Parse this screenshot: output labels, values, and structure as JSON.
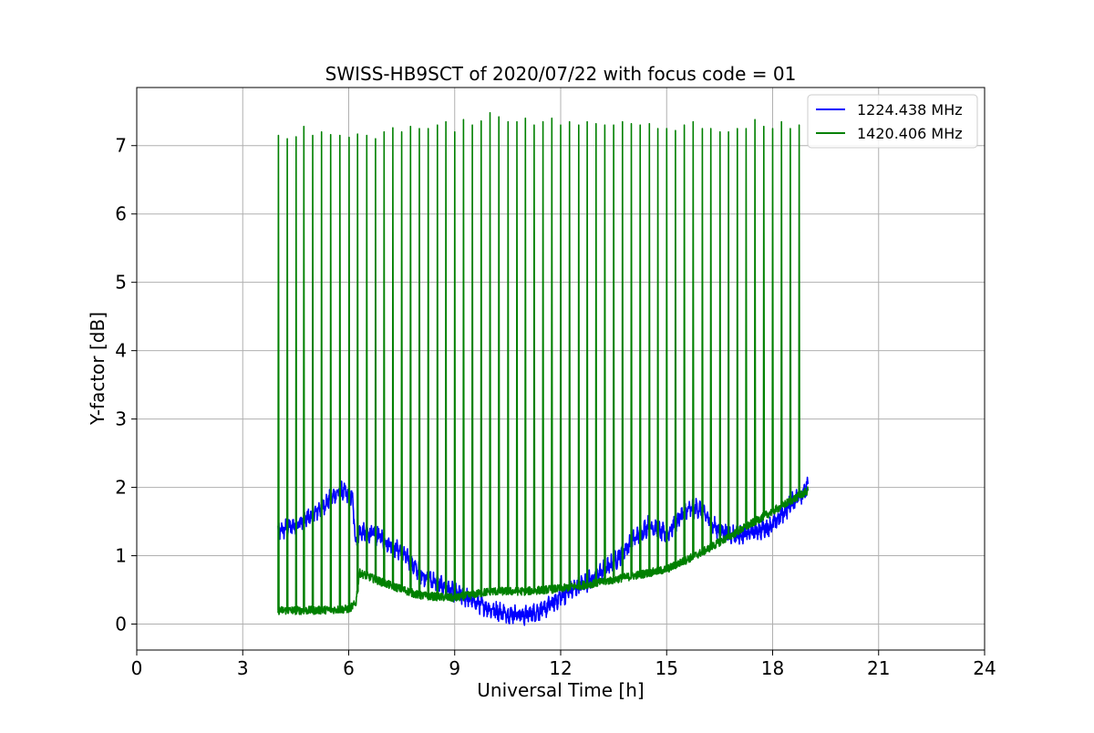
{
  "chart_data": {
    "type": "line",
    "title": "SWISS-HB9SCT of 2020/07/22 with focus code = 01",
    "xlabel": "Universal Time [h]",
    "ylabel": "Y-factor [dB]",
    "xlim": [
      0,
      24
    ],
    "ylim": [
      -0.38,
      7.85
    ],
    "xticks": [
      0,
      3,
      6,
      9,
      12,
      15,
      18,
      21,
      24
    ],
    "xtick_labels": [
      "0",
      "3",
      "6",
      "9",
      "12",
      "15",
      "18",
      "21",
      "24"
    ],
    "yticks": [
      0,
      1,
      2,
      3,
      4,
      5,
      6,
      7
    ],
    "ytick_labels": [
      "0",
      "1",
      "2",
      "3",
      "4",
      "5",
      "6",
      "7"
    ],
    "grid": true,
    "legend_position": "top-right",
    "series": [
      {
        "name": "1224.438 MHz",
        "color": "#0000ff",
        "noise": 0.1,
        "x": [
          4.0,
          4.5,
          5.0,
          5.5,
          5.8,
          6.1,
          6.2,
          6.3,
          6.8,
          7.5,
          8.0,
          9.0,
          9.5,
          10.0,
          10.5,
          11.0,
          11.5,
          12.0,
          12.5,
          13.0,
          13.5,
          14.0,
          14.5,
          15.0,
          15.5,
          15.9,
          16.5,
          17.0,
          17.5,
          18.0,
          18.5,
          19.0
        ],
        "y": [
          1.35,
          1.45,
          1.6,
          1.85,
          1.95,
          1.85,
          1.2,
          1.35,
          1.3,
          1.05,
          0.75,
          0.45,
          0.35,
          0.22,
          0.15,
          0.13,
          0.2,
          0.4,
          0.55,
          0.7,
          0.9,
          1.2,
          1.45,
          1.3,
          1.65,
          1.7,
          1.35,
          1.3,
          1.35,
          1.45,
          1.75,
          2.0
        ]
      },
      {
        "name": "1420.406 MHz",
        "color": "#008000",
        "noise": 0.06,
        "x": [
          4.0,
          5.0,
          6.0,
          6.2,
          6.3,
          7.0,
          8.0,
          9.0,
          10.0,
          11.0,
          12.0,
          13.0,
          14.0,
          15.0,
          16.0,
          17.0,
          18.0,
          19.0
        ],
        "y": [
          0.2,
          0.2,
          0.22,
          0.3,
          0.75,
          0.6,
          0.42,
          0.38,
          0.48,
          0.48,
          0.52,
          0.6,
          0.7,
          0.8,
          1.05,
          1.35,
          1.65,
          1.95
        ],
        "spike_times": [
          4.0,
          4.25,
          4.5,
          4.72,
          4.97,
          5.22,
          5.48,
          5.74,
          6.0,
          6.24,
          6.5,
          6.75,
          6.99,
          7.24,
          7.49,
          7.74,
          7.99,
          8.24,
          8.5,
          8.74,
          8.99,
          9.24,
          9.49,
          9.74,
          9.99,
          10.24,
          10.5,
          10.75,
          10.99,
          11.24,
          11.49,
          11.74,
          11.99,
          12.24,
          12.5,
          12.74,
          12.99,
          13.24,
          13.49,
          13.74,
          13.99,
          14.24,
          14.5,
          14.74,
          14.99,
          15.24,
          15.49,
          15.74,
          16.0,
          16.24,
          16.5,
          16.74,
          16.99,
          17.24,
          17.49,
          17.74,
          17.99,
          18.24,
          18.49,
          18.74
        ],
        "spike_peaks": [
          7.15,
          7.1,
          7.13,
          7.28,
          7.15,
          7.2,
          7.16,
          7.15,
          7.12,
          7.17,
          7.15,
          7.1,
          7.2,
          7.26,
          7.2,
          7.28,
          7.25,
          7.25,
          7.3,
          7.35,
          7.2,
          7.38,
          7.3,
          7.36,
          7.48,
          7.42,
          7.35,
          7.35,
          7.4,
          7.3,
          7.35,
          7.4,
          7.3,
          7.35,
          7.3,
          7.35,
          7.32,
          7.3,
          7.3,
          7.35,
          7.32,
          7.3,
          7.32,
          7.25,
          7.25,
          7.22,
          7.3,
          7.35,
          7.25,
          7.25,
          7.2,
          7.2,
          7.25,
          7.25,
          7.38,
          7.28,
          7.25,
          7.35,
          7.25,
          7.3
        ]
      }
    ]
  }
}
